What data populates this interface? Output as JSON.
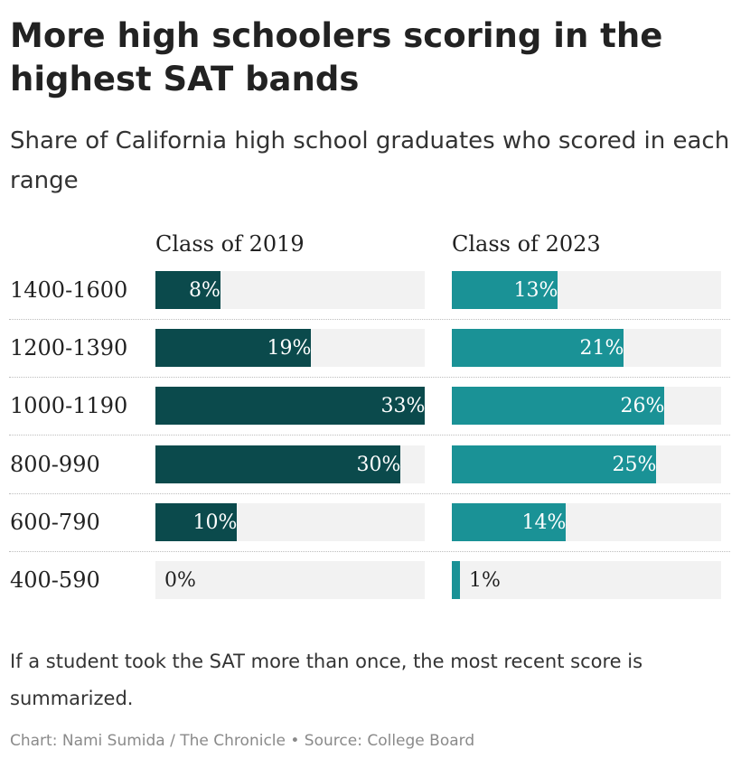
{
  "header": {
    "title": "More high schoolers scoring in the highest SAT bands",
    "subtitle": "Share of California high school graduates who scored in each range"
  },
  "chart_data": {
    "type": "bar",
    "orientation": "horizontal",
    "categories": [
      "1400-1600",
      "1200-1390",
      "1000-1190",
      "800-990",
      "600-790",
      "400-590"
    ],
    "series": [
      {
        "name": "Class of 2019",
        "values": [
          8,
          19,
          33,
          30,
          10,
          0
        ],
        "labels": [
          "8%",
          "19%",
          "33%",
          "30%",
          "10%",
          "0%"
        ],
        "color": "#0b4a4c"
      },
      {
        "name": "Class of 2023",
        "values": [
          13,
          21,
          26,
          25,
          14,
          1
        ],
        "labels": [
          "13%",
          "21%",
          "26%",
          "25%",
          "14%",
          "1%"
        ],
        "color": "#1a9296"
      }
    ],
    "xlim": [
      0,
      33
    ],
    "unit": "%",
    "track_color": "#f2f2f2"
  },
  "footer": {
    "note": "If a student took the SAT more than once, the most recent score is summarized.",
    "credit": "Chart: Nami Sumida / The Chronicle • Source: College Board"
  }
}
